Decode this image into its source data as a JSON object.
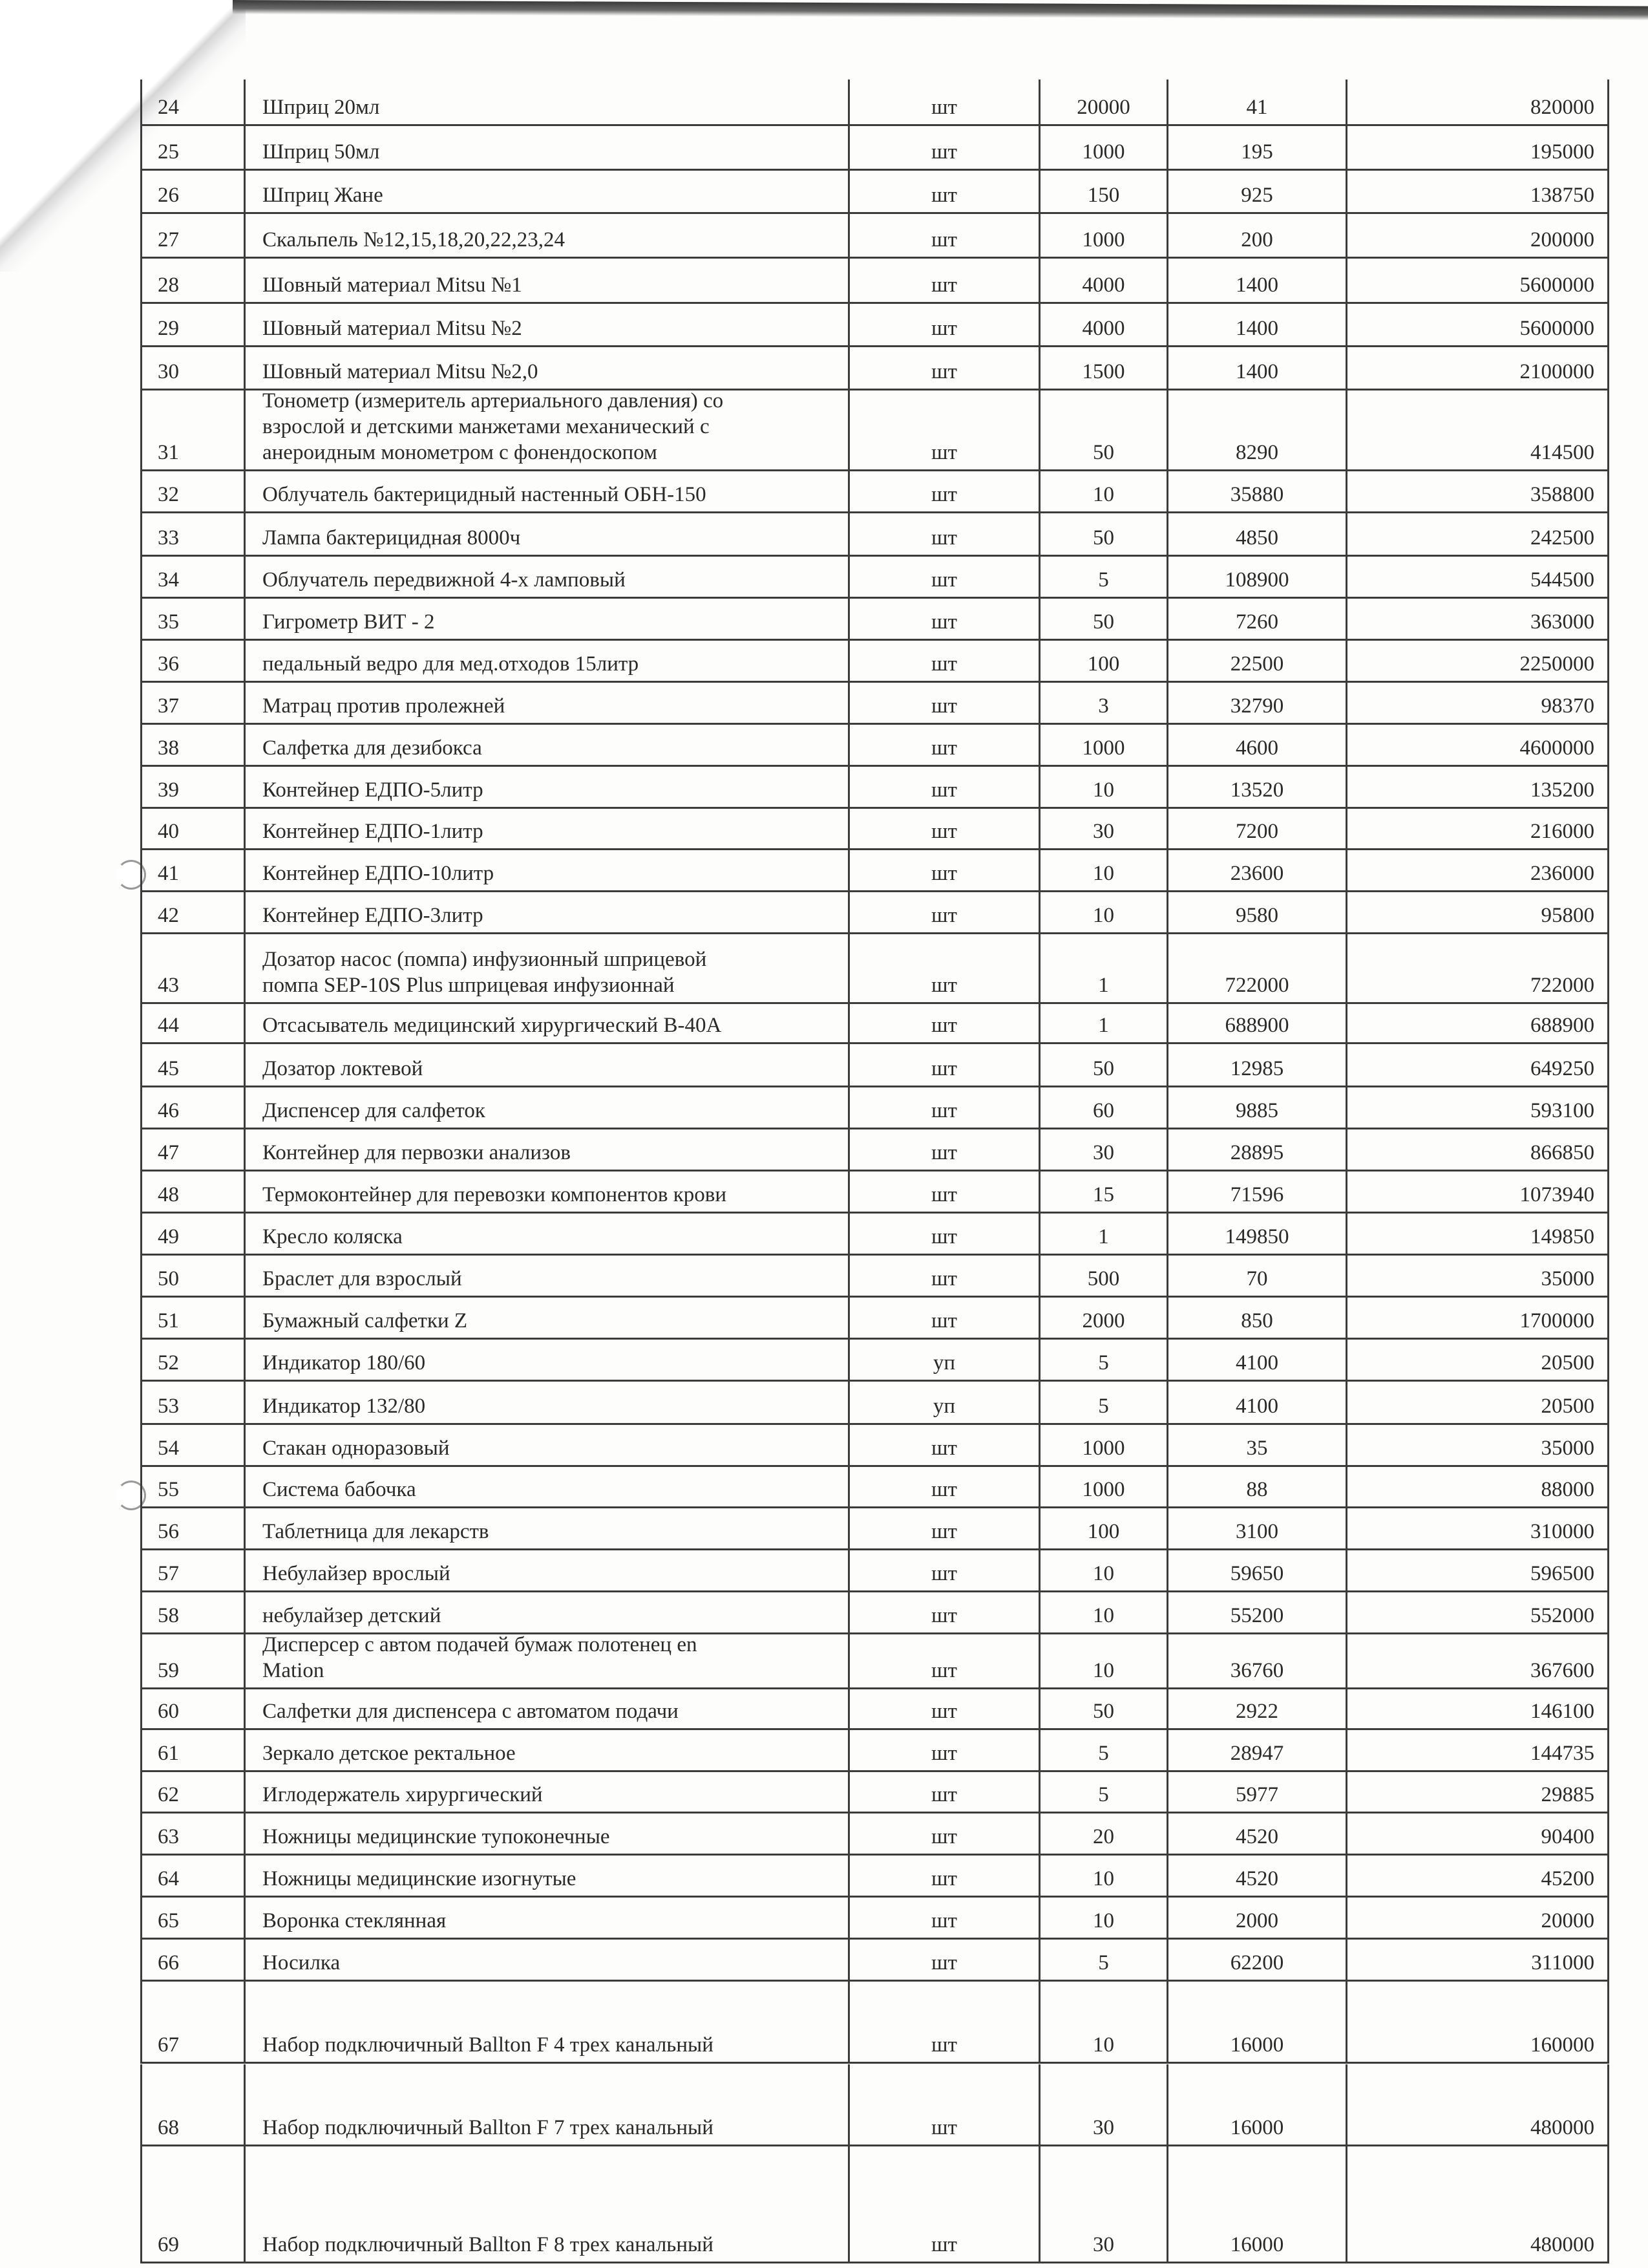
{
  "table": {
    "rows": [
      [
        "24",
        "Шприц 20мл",
        "шт",
        "20000",
        "41",
        "820000"
      ],
      [
        "25",
        "Шприц 50мл",
        "шт",
        "1000",
        "195",
        "195000"
      ],
      [
        "26",
        "Шприц Жане",
        "шт",
        "150",
        "925",
        "138750"
      ],
      [
        "27",
        "Скальпель №12,15,18,20,22,23,24",
        "шт",
        "1000",
        "200",
        "200000"
      ],
      [
        "28",
        "Шовный материал Mitsu №1",
        "шт",
        "4000",
        "1400",
        "5600000"
      ],
      [
        "29",
        "Шовный материал Mitsu №2",
        "шт",
        "4000",
        "1400",
        "5600000"
      ],
      [
        "30",
        "Шовный материал Mitsu №2,0",
        "шт",
        "1500",
        "1400",
        "2100000"
      ],
      [
        "31",
        "Тонометр (измеритель артериального давления) со\nвзрослой и детскими манжетами механический с\nанероидным монометром с фонендоскопом",
        "шт",
        "50",
        "8290",
        "414500"
      ],
      [
        "32",
        "Облучатель бактерицидный настенный ОБН-150",
        "шт",
        "10",
        "35880",
        "358800"
      ],
      [
        "33",
        "Лампа бактерицидная 8000ч",
        "шт",
        "50",
        "4850",
        "242500"
      ],
      [
        "34",
        "Облучатель передвижной 4-х ламповый",
        "шт",
        "5",
        "108900",
        "544500"
      ],
      [
        "35",
        "Гигрометр ВИТ - 2",
        "шт",
        "50",
        "7260",
        "363000"
      ],
      [
        "36",
        "педальный ведро для мед.отходов 15литр",
        "шт",
        "100",
        "22500",
        "2250000"
      ],
      [
        "37",
        "Матрац против пролежней",
        "шт",
        "3",
        "32790",
        "98370"
      ],
      [
        "38",
        "Салфетка для дезибокса",
        "шт",
        "1000",
        "4600",
        "4600000"
      ],
      [
        "39",
        "Контейнер ЕДПО-5литр",
        "шт",
        "10",
        "13520",
        "135200"
      ],
      [
        "40",
        "Контейнер ЕДПО-1литр",
        "шт",
        "30",
        "7200",
        "216000"
      ],
      [
        "41",
        "Контейнер ЕДПО-10литр",
        "шт",
        "10",
        "23600",
        "236000"
      ],
      [
        "42",
        "Контейнер ЕДПО-3литр",
        "шт",
        "10",
        "9580",
        "95800"
      ],
      [
        "43",
        "Дозатор насос (помпа) инфузионный шприцевой\nпомпа SEP-10S Plus шприцевая инфузионнай",
        "шт",
        "1",
        "722000",
        "722000"
      ],
      [
        "44",
        "Отсасыватель медицинский хирургический В-40А",
        "шт",
        "1",
        "688900",
        "688900"
      ],
      [
        "45",
        "Дозатор локтевой",
        "шт",
        "50",
        "12985",
        "649250"
      ],
      [
        "46",
        "Диспенсер для салфеток",
        "шт",
        "60",
        "9885",
        "593100"
      ],
      [
        "47",
        "Контейнер для первозки анализов",
        "шт",
        "30",
        "28895",
        "866850"
      ],
      [
        "48",
        "Термоконтейнер для перевозки компонентов крови",
        "шт",
        "15",
        "71596",
        "1073940"
      ],
      [
        "49",
        "Кресло коляска",
        "шт",
        "1",
        "149850",
        "149850"
      ],
      [
        "50",
        "Браслет для взрослый",
        "шт",
        "500",
        "70",
        "35000"
      ],
      [
        "51",
        "Бумажный салфетки Z",
        "шт",
        "2000",
        "850",
        "1700000"
      ],
      [
        "52",
        "Индикатор 180/60",
        "уп",
        "5",
        "4100",
        "20500"
      ],
      [
        "53",
        "Индикатор 132/80",
        "уп",
        "5",
        "4100",
        "20500"
      ],
      [
        "54",
        "Стакан одноразовый",
        "шт",
        "1000",
        "35",
        "35000"
      ],
      [
        "55",
        "Система бабочка",
        "шт",
        "1000",
        "88",
        "88000"
      ],
      [
        "56",
        "Таблетница для лекарств",
        "шт",
        "100",
        "3100",
        "310000"
      ],
      [
        "57",
        "Небулайзер врослый",
        "шт",
        "10",
        "59650",
        "596500"
      ],
      [
        "58",
        "небулайзер детский",
        "шт",
        "10",
        "55200",
        "552000"
      ],
      [
        "59",
        "Дисперсер с автом подачей бумаж полотенец en\nMation",
        "шт",
        "10",
        "36760",
        "367600"
      ],
      [
        "60",
        "Салфетки для диспенсера с автоматом подачи",
        "шт",
        "50",
        "2922",
        "146100"
      ],
      [
        "61",
        "Зеркало детское ректальное",
        "шт",
        "5",
        "28947",
        "144735"
      ],
      [
        "62",
        "Иглодержатель хирургический",
        "шт",
        "5",
        "5977",
        "29885"
      ],
      [
        "63",
        "Ножницы медицинские тупоконечные",
        "шт",
        "20",
        "4520",
        "90400"
      ],
      [
        "64",
        "Ножницы медицинские изогнутые",
        "шт",
        "10",
        "4520",
        "45200"
      ],
      [
        "65",
        "Воронка стеклянная",
        "шт",
        "10",
        "2000",
        "20000"
      ],
      [
        "66",
        "Носилка",
        "шт",
        "5",
        "62200",
        "311000"
      ],
      [
        "67",
        "Набор подключичный Ballton F 4 трех канальный",
        "шт",
        "10",
        "16000",
        "160000"
      ],
      [
        "68",
        "Набор подключичный Ballton F 7 трех канальный",
        "шт",
        "30",
        "16000",
        "480000"
      ],
      [
        "69",
        "Набор подключичный Ballton F 8 трех канальный",
        "шт",
        "30",
        "16000",
        "480000"
      ]
    ]
  }
}
